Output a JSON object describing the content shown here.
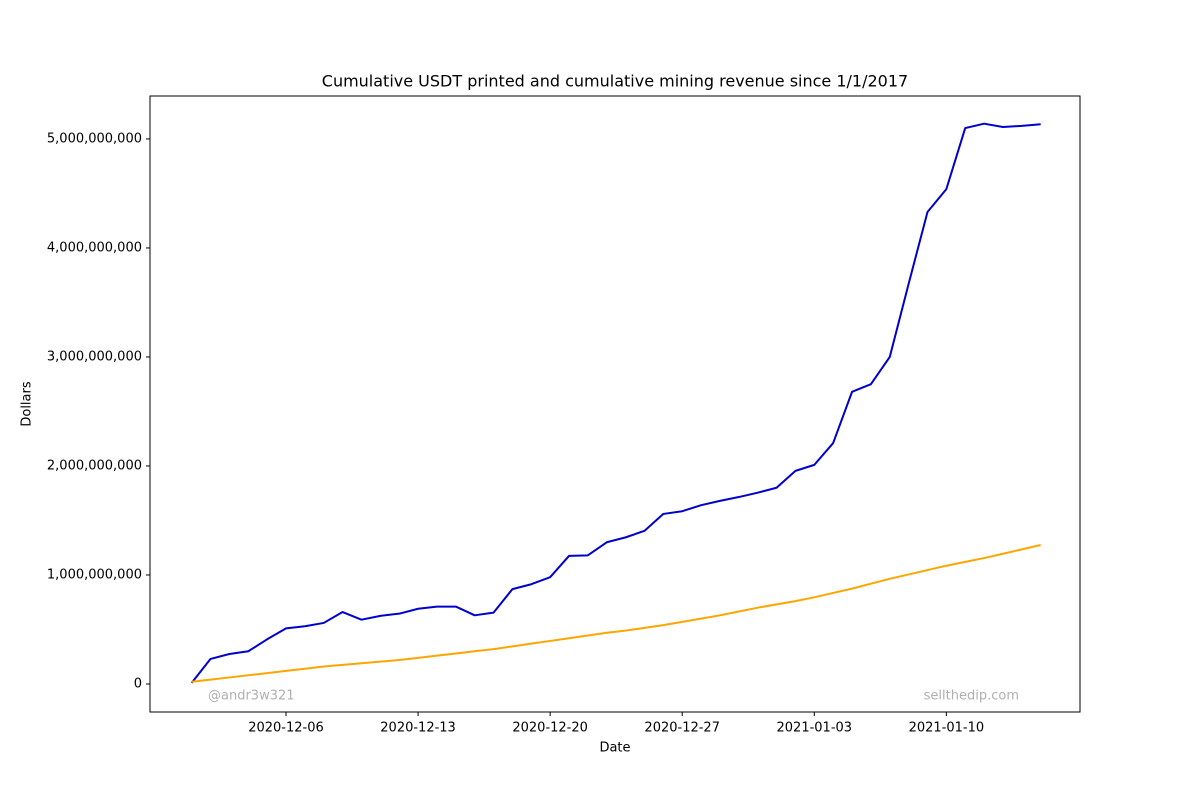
{
  "chart_data": {
    "type": "line",
    "title": "Cumulative USDT printed and cumulative mining revenue since 1/1/2017",
    "x_label": "Date",
    "y_label": "Dollars",
    "annotations": [
      "@andr3w321",
      "sellthedip.com"
    ],
    "x": [
      "2020-12-01",
      "2020-12-02",
      "2020-12-03",
      "2020-12-04",
      "2020-12-05",
      "2020-12-06",
      "2020-12-07",
      "2020-12-08",
      "2020-12-09",
      "2020-12-10",
      "2020-12-11",
      "2020-12-12",
      "2020-12-13",
      "2020-12-14",
      "2020-12-15",
      "2020-12-16",
      "2020-12-17",
      "2020-12-18",
      "2020-12-19",
      "2020-12-20",
      "2020-12-21",
      "2020-12-22",
      "2020-12-23",
      "2020-12-24",
      "2020-12-25",
      "2020-12-26",
      "2020-12-27",
      "2020-12-28",
      "2020-12-29",
      "2020-12-30",
      "2020-12-31",
      "2021-01-01",
      "2021-01-02",
      "2021-01-03",
      "2021-01-04",
      "2021-01-05",
      "2021-01-06",
      "2021-01-07",
      "2021-01-08",
      "2021-01-09",
      "2021-01-10",
      "2021-01-11",
      "2021-01-12",
      "2021-01-13",
      "2021-01-14",
      "2021-01-15"
    ],
    "series": [
      {
        "color": "#0000cd",
        "values": [
          10000000,
          230000000,
          275000000,
          300000000,
          410000000,
          510000000,
          530000000,
          560000000,
          660000000,
          590000000,
          625000000,
          645000000,
          690000000,
          710000000,
          710000000,
          630000000,
          655000000,
          870000000,
          915000000,
          980000000,
          1175000000,
          1180000000,
          1300000000,
          1345000000,
          1405000000,
          1560000000,
          1585000000,
          1640000000,
          1680000000,
          1715000000,
          1755000000,
          1800000000,
          1955000000,
          2010000000,
          2210000000,
          2680000000,
          2750000000,
          3000000000,
          3670000000,
          4330000000,
          4540000000,
          5100000000,
          5140000000,
          5110000000,
          5120000000,
          5135000000
        ]
      },
      {
        "color": "#ffa500",
        "values": [
          20000000,
          40000000,
          60000000,
          80000000,
          100000000,
          120000000,
          140000000,
          160000000,
          175000000,
          190000000,
          205000000,
          220000000,
          240000000,
          260000000,
          280000000,
          300000000,
          320000000,
          345000000,
          370000000,
          395000000,
          420000000,
          445000000,
          470000000,
          490000000,
          515000000,
          540000000,
          570000000,
          600000000,
          630000000,
          665000000,
          700000000,
          730000000,
          760000000,
          795000000,
          835000000,
          875000000,
          920000000,
          965000000,
          1005000000,
          1045000000,
          1085000000,
          1120000000,
          1155000000,
          1195000000,
          1235000000,
          1275000000
        ]
      }
    ],
    "xlim": [
      "2020-11-28T19:00Z",
      "2021-01-17T02:00Z"
    ],
    "xticks": [
      "2020-12-06",
      "2020-12-13",
      "2020-12-20",
      "2020-12-27",
      "2021-01-03",
      "2021-01-10"
    ],
    "ylim": [
      -257000000,
      5394000000
    ],
    "yticks": [
      0,
      {
        "value": 1000000000,
        "label": "1,000,000,000"
      },
      {
        "value": 2000000000,
        "label": "2,000,000,000"
      },
      {
        "value": 3000000000,
        "label": "3,000,000,000"
      },
      {
        "value": 4000000000,
        "label": "4,000,000,000"
      },
      {
        "value": 5000000000,
        "label": "5,000,000,000"
      }
    ],
    "grid": false
  }
}
